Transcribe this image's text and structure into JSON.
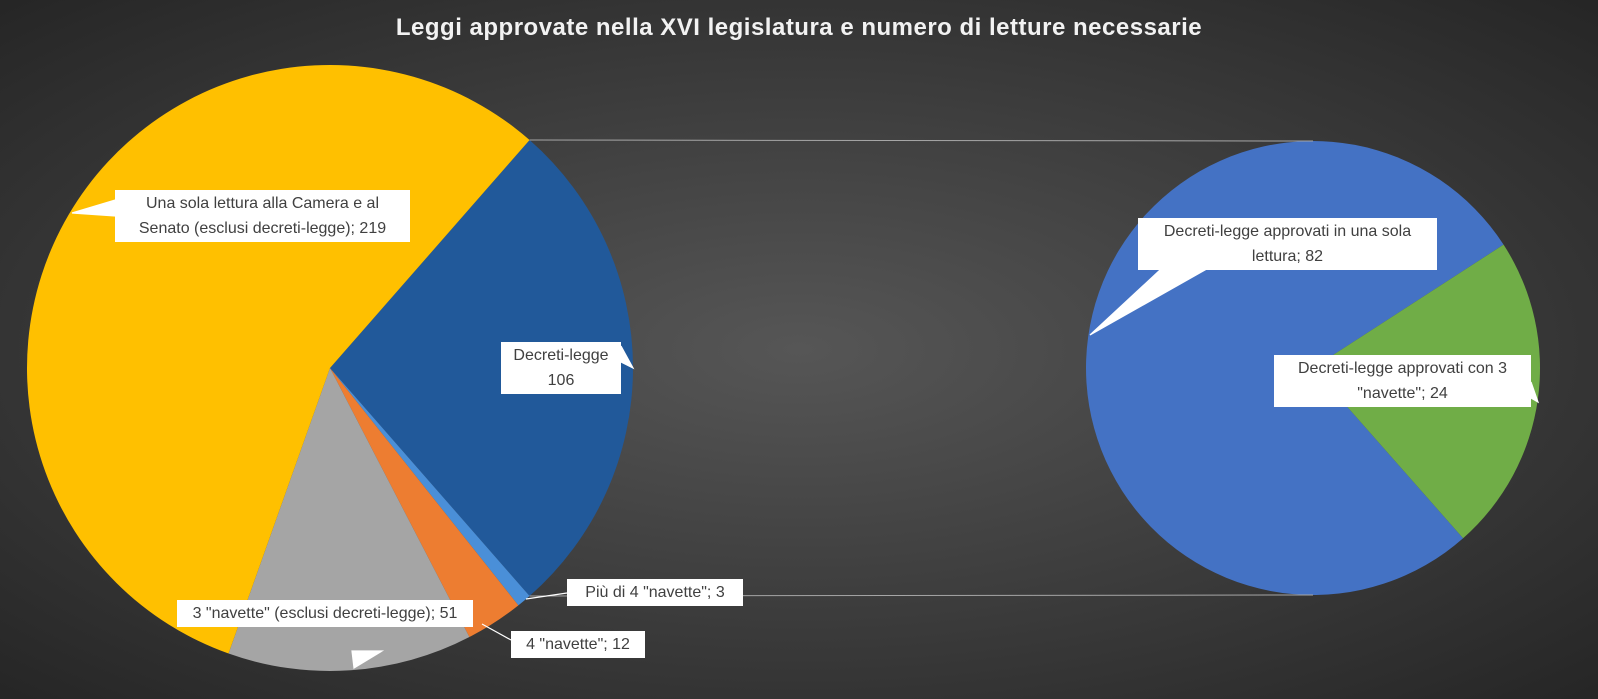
{
  "chart_data": {
    "type": "pie_of_pie",
    "title": "Leggi approvate nella XVI legislatura e numero di letture necessarie",
    "values": [
      106,
      3,
      12,
      51,
      219
    ],
    "value_labels": [
      "Decreti-legge 106",
      "Più di 4 \"navette\"; 3",
      "4 \"navette\"; 12",
      "3 \"navette\" (esclusi decreti-legge); 51",
      "Una sola lettura alla Camera e al Senato (esclusi decreti-legge); 219"
    ],
    "colors": [
      "#21599a",
      "#4a8fd8",
      "#ed7d31",
      "#a5a5a5",
      "#ffc000"
    ],
    "secondary": {
      "values": [
        82,
        24
      ],
      "value_labels": [
        "Decreti-legge approvati in una sola lettura; 82",
        "Decreti-legge approvati con 3 \"navette\"; 24"
      ],
      "colors": [
        "#4472c4",
        "#70ad47"
      ]
    }
  }
}
